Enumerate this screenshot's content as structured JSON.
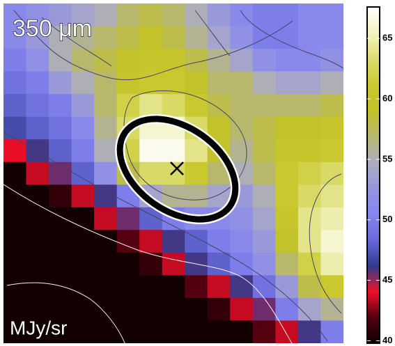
{
  "chart_data": {
    "type": "heatmap",
    "title": "350 μm",
    "unit_label": "MJy/sr",
    "values": [
      [
        51,
        52,
        53,
        54,
        55,
        57,
        58,
        57,
        55,
        53,
        51,
        50,
        50,
        51,
        51
      ],
      [
        51,
        53,
        55,
        56,
        57,
        58,
        59,
        58,
        56,
        54,
        52,
        50,
        50,
        51,
        51
      ],
      [
        50,
        52,
        55,
        57,
        58,
        59,
        60,
        60,
        58,
        56,
        54,
        52,
        51,
        51,
        52
      ],
      [
        49,
        50,
        53,
        55,
        57,
        60,
        61,
        61,
        59,
        57,
        57,
        55,
        54,
        54,
        55
      ],
      [
        48,
        49,
        50,
        53,
        57,
        62,
        64,
        63,
        61,
        58,
        57,
        57,
        57,
        57,
        58
      ],
      [
        47,
        48,
        49,
        51,
        56,
        63,
        66,
        66,
        63,
        59,
        57,
        58,
        59,
        59,
        60
      ],
      [
        44,
        46,
        48,
        50,
        55,
        62,
        67,
        67,
        64,
        59,
        56,
        58,
        60,
        60,
        61
      ],
      [
        40,
        43.5,
        45.5,
        48,
        52,
        58,
        63,
        63,
        61,
        57,
        55,
        57,
        61,
        62,
        63
      ],
      [
        40,
        40,
        41,
        43.5,
        46,
        50,
        54,
        56,
        56,
        54,
        53,
        55,
        61,
        63,
        64
      ],
      [
        40,
        40,
        40,
        40,
        43.5,
        45.5,
        48,
        50,
        51,
        51,
        52,
        54,
        60,
        64,
        65
      ],
      [
        40,
        40,
        40,
        40,
        40,
        42,
        43.5,
        46,
        48,
        50,
        51,
        53,
        59,
        64,
        66
      ],
      [
        40,
        40,
        40,
        40,
        40,
        40,
        41,
        43.5,
        46,
        48,
        50,
        52,
        57,
        62,
        65
      ],
      [
        40,
        40,
        40,
        40,
        40,
        40,
        40,
        40,
        42,
        43.5,
        46,
        49,
        53,
        58,
        61
      ],
      [
        40,
        40,
        40,
        40,
        40,
        40,
        40,
        40,
        40,
        41,
        43.5,
        45.5,
        50,
        54,
        56
      ],
      [
        40,
        40,
        40,
        40,
        40,
        40,
        40,
        40,
        40,
        40,
        40,
        42,
        43.5,
        46,
        50
      ]
    ],
    "clim": [
      39.8,
      67.6
    ],
    "cticks": [
      40,
      45,
      50,
      55,
      60,
      65
    ],
    "colormap": [
      "#0d0000",
      "#500010",
      "#f01028",
      "#303c90",
      "#6868d8",
      "#8585f0",
      "#9595e0",
      "#adadc0",
      "#b8b870",
      "#c2c228",
      "#caca30",
      "#dcdc70",
      "#f2f2c0",
      "#ffffff"
    ]
  }
}
